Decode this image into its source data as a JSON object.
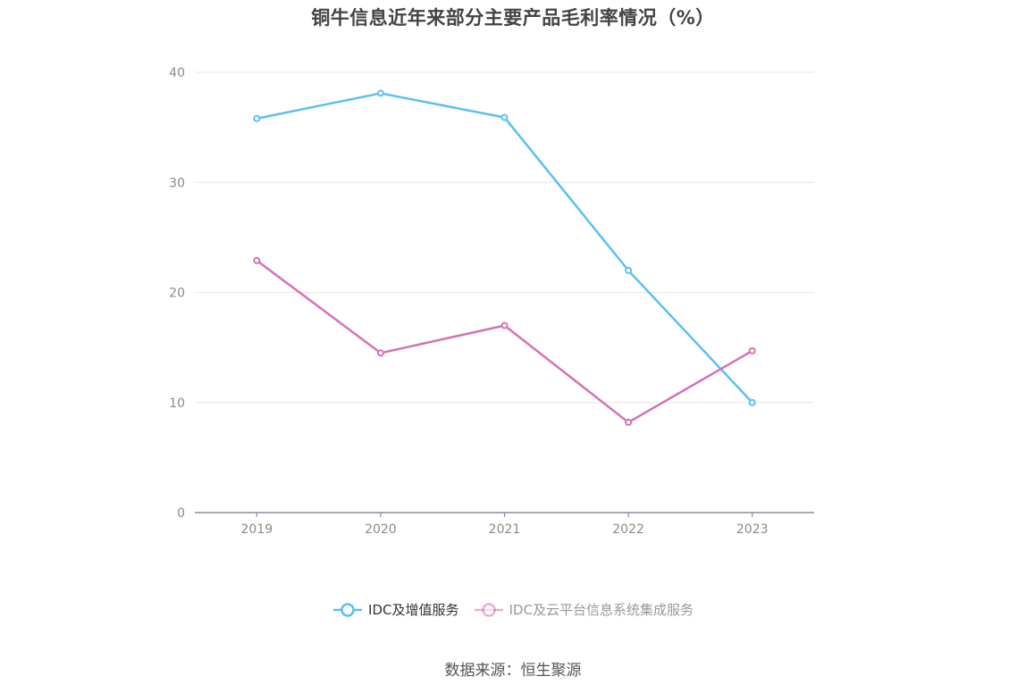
{
  "chart_data": {
    "type": "line",
    "title": "铜牛信息近年来部分主要产品毛利率情况（%）",
    "categories": [
      "2019",
      "2020",
      "2021",
      "2022",
      "2023"
    ],
    "ylim": [
      0,
      40
    ],
    "yticks": [
      "0",
      "10",
      "20",
      "30",
      "40"
    ],
    "grid": true,
    "legend_position": "bottom",
    "series": [
      {
        "name": "IDC及增值服务",
        "color": "#5bc0f0",
        "values": [
          35.8,
          38.1,
          35.9,
          22.0,
          10.0
        ]
      },
      {
        "name": "IDC及云平台信息系统集成服务",
        "color": "#d571b5",
        "values": [
          22.9,
          14.5,
          17.0,
          8.2,
          14.7
        ]
      }
    ],
    "source": "数据来源：恒生聚源"
  },
  "legend_text_colors": [
    "#333333",
    "#999999"
  ]
}
